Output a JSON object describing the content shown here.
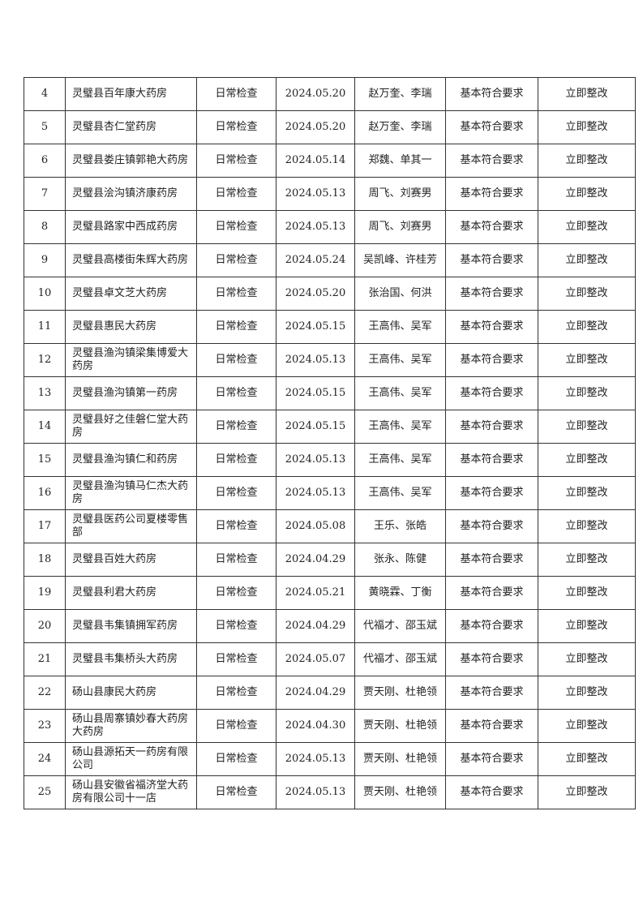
{
  "rows": [
    {
      "no": "4",
      "name": "灵璧县百年康大药房",
      "type": "日常检查",
      "date": "2024.05.20",
      "inspectors": "赵万奎、李瑞",
      "result": "基本符合要求",
      "action": "立即整改"
    },
    {
      "no": "5",
      "name": "灵璧县杏仁堂药房",
      "type": "日常检查",
      "date": "2024.05.20",
      "inspectors": "赵万奎、李瑞",
      "result": "基本符合要求",
      "action": "立即整改"
    },
    {
      "no": "6",
      "name": "灵璧县娄庄镇郭艳大药房",
      "type": "日常检查",
      "date": "2024.05.14",
      "inspectors": "郑魏、单其一",
      "result": "基本符合要求",
      "action": "立即整改"
    },
    {
      "no": "7",
      "name": "灵璧县浍沟镇济康药房",
      "type": "日常检查",
      "date": "2024.05.13",
      "inspectors": "周飞、刘赛男",
      "result": "基本符合要求",
      "action": "立即整改"
    },
    {
      "no": "8",
      "name": "灵璧县路家中西成药房",
      "type": "日常检查",
      "date": "2024.05.13",
      "inspectors": "周飞、刘赛男",
      "result": "基本符合要求",
      "action": "立即整改"
    },
    {
      "no": "9",
      "name": "灵璧县高楼街朱辉大药房",
      "type": "日常检查",
      "date": "2024.05.24",
      "inspectors": "吴凯峰、许桂芳",
      "result": "基本符合要求",
      "action": "立即整改"
    },
    {
      "no": "10",
      "name": "灵璧县卓文芝大药房",
      "type": "日常检查",
      "date": "2024.05.20",
      "inspectors": "张治国、何洪",
      "result": "基本符合要求",
      "action": "立即整改"
    },
    {
      "no": "11",
      "name": "灵璧县惠民大药房",
      "type": "日常检查",
      "date": "2024.05.15",
      "inspectors": "王高伟、吴军",
      "result": "基本符合要求",
      "action": "立即整改"
    },
    {
      "no": "12",
      "name": "灵璧县渔沟镇梁集博爱大药房",
      "type": "日常检查",
      "date": "2024.05.13",
      "inspectors": "王高伟、吴军",
      "result": "基本符合要求",
      "action": "立即整改"
    },
    {
      "no": "13",
      "name": "灵璧县渔沟镇第一药房",
      "type": "日常检查",
      "date": "2024.05.15",
      "inspectors": "王高伟、吴军",
      "result": "基本符合要求",
      "action": "立即整改"
    },
    {
      "no": "14",
      "name": "灵璧县好之佳磐仁堂大药房",
      "type": "日常检查",
      "date": "2024.05.15",
      "inspectors": "王高伟、吴军",
      "result": "基本符合要求",
      "action": "立即整改"
    },
    {
      "no": "15",
      "name": "灵璧县渔沟镇仁和药房",
      "type": "日常检查",
      "date": "2024.05.13",
      "inspectors": "王高伟、吴军",
      "result": "基本符合要求",
      "action": "立即整改"
    },
    {
      "no": "16",
      "name": "灵璧县渔沟镇马仁杰大药房",
      "type": "日常检查",
      "date": "2024.05.13",
      "inspectors": "王高伟、吴军",
      "result": "基本符合要求",
      "action": "立即整改"
    },
    {
      "no": "17",
      "name": "灵璧县医药公司夏楼零售部",
      "type": "日常检查",
      "date": "2024.05.08",
      "inspectors": "王乐、张皓",
      "result": "基本符合要求",
      "action": "立即整改"
    },
    {
      "no": "18",
      "name": "灵璧县百姓大药房",
      "type": "日常检查",
      "date": "2024.04.29",
      "inspectors": "张永、陈健",
      "result": "基本符合要求",
      "action": "立即整改"
    },
    {
      "no": "19",
      "name": "灵璧县利君大药房",
      "type": "日常检查",
      "date": "2024.05.21",
      "inspectors": "黄晓霖、丁衡",
      "result": "基本符合要求",
      "action": "立即整改"
    },
    {
      "no": "20",
      "name": "灵璧县韦集镇拥军药房",
      "type": "日常检查",
      "date": "2024.04.29",
      "inspectors": "代福才、邵玉斌",
      "result": "基本符合要求",
      "action": "立即整改"
    },
    {
      "no": "21",
      "name": "灵璧县韦集桥头大药房",
      "type": "日常检查",
      "date": "2024.05.07",
      "inspectors": "代福才、邵玉斌",
      "result": "基本符合要求",
      "action": "立即整改"
    },
    {
      "no": "22",
      "name": "砀山县康民大药房",
      "type": "日常检查",
      "date": "2024.04.29",
      "inspectors": "贾天刚、杜艳领",
      "result": "基本符合要求",
      "action": "立即整改"
    },
    {
      "no": "23",
      "name": "砀山县周寨镇妙春大药房大药房",
      "type": "日常检查",
      "date": "2024.04.30",
      "inspectors": "贾天刚、杜艳领",
      "result": "基本符合要求",
      "action": "立即整改"
    },
    {
      "no": "24",
      "name": "砀山县源拓天一药房有限公司",
      "type": "日常检查",
      "date": "2024.05.13",
      "inspectors": "贾天刚、杜艳领",
      "result": "基本符合要求",
      "action": "立即整改"
    },
    {
      "no": "25",
      "name": "砀山县安徽省福济堂大药房有限公司十一店",
      "type": "日常检查",
      "date": "2024.05.13",
      "inspectors": "贾天刚、杜艳领",
      "result": "基本符合要求",
      "action": "立即整改"
    }
  ]
}
